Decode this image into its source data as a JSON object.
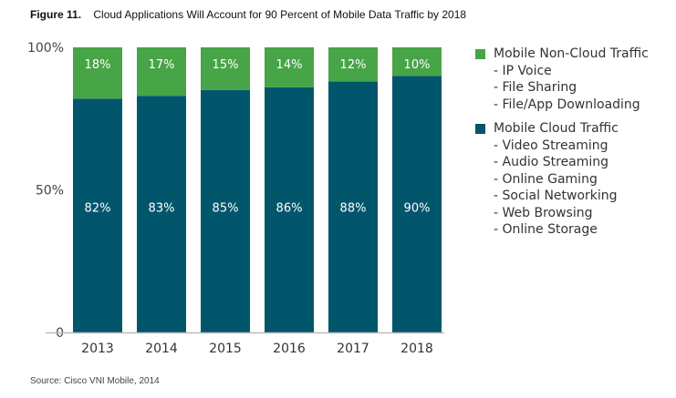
{
  "figure": {
    "number_label": "Figure 11.",
    "title": "Cloud Applications Will Account for 90 Percent of Mobile Data Traffic by 2018",
    "source": "Source: Cisco VNI Mobile, 2014"
  },
  "colors": {
    "cloud": "#02566b",
    "noncloud": "#47a447",
    "axis": "#bbbbbb"
  },
  "chart_data": {
    "type": "bar",
    "stacked": true,
    "title": "Cloud Applications Will Account for 90 Percent of Mobile Data Traffic by 2018",
    "xlabel": "",
    "ylabel": "",
    "categories": [
      "2013",
      "2014",
      "2015",
      "2016",
      "2017",
      "2018"
    ],
    "yticks": [
      {
        "value": 0,
        "label": "0"
      },
      {
        "value": 50,
        "label": "50%"
      },
      {
        "value": 100,
        "label": "100%"
      }
    ],
    "ylim": [
      0,
      100
    ],
    "grid": false,
    "legend_position": "right",
    "series": [
      {
        "name": "Mobile Cloud Traffic",
        "color": "#02566b",
        "values": [
          82,
          83,
          85,
          86,
          88,
          90
        ],
        "labels": [
          "82%",
          "83%",
          "85%",
          "86%",
          "88%",
          "90%"
        ]
      },
      {
        "name": "Mobile Non-Cloud Traffic",
        "color": "#47a447",
        "values": [
          18,
          17,
          15,
          14,
          12,
          10
        ],
        "labels": [
          "18%",
          "17%",
          "15%",
          "14%",
          "12%",
          "10%"
        ]
      }
    ]
  },
  "legend": [
    {
      "name": "Mobile Non-Cloud Traffic",
      "color": "#47a447",
      "items": [
        "- IP Voice",
        "- File Sharing",
        "- File/App Downloading"
      ]
    },
    {
      "name": "Mobile Cloud Traffic",
      "color": "#02566b",
      "items": [
        "- Video Streaming",
        "- Audio Streaming",
        "- Online Gaming",
        "- Social Networking",
        "- Web Browsing",
        "- Online Storage"
      ]
    }
  ]
}
